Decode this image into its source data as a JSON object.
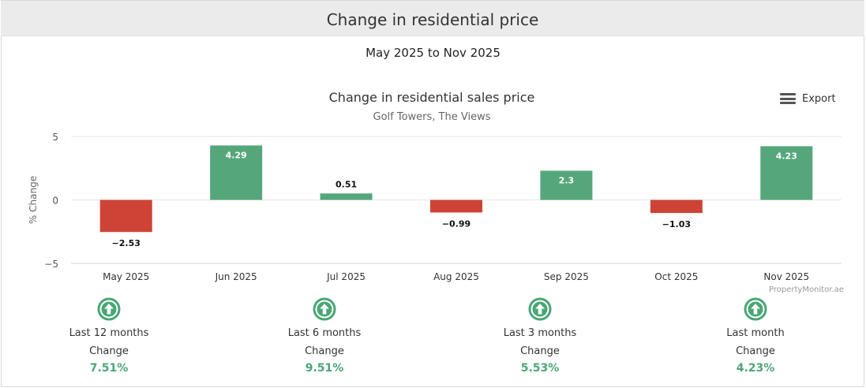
{
  "header": {
    "title": "Change in residential price"
  },
  "date_range": "May 2025 to Nov 2025",
  "export": {
    "label": "Export"
  },
  "credit": "PropertyMonitor.ae",
  "colors": {
    "positive": "#55a77b",
    "negative": "#cf4337",
    "stat_value": "#4aa675"
  },
  "chart_data": {
    "type": "bar",
    "title": "Change in residential sales price",
    "subtitle": "Golf Towers, The Views",
    "categories": [
      "May 2025",
      "Jun 2025",
      "Jul 2025",
      "Aug 2025",
      "Sep 2025",
      "Oct 2025",
      "Nov 2025"
    ],
    "values": [
      -2.53,
      4.29,
      0.51,
      -0.99,
      2.3,
      -1.03,
      4.23
    ],
    "value_labels": [
      "−2.53",
      "4.29",
      "0.51",
      "−0.99",
      "2.3",
      "−1.03",
      "4.23"
    ],
    "ylabel": "% Change",
    "xlabel": "",
    "ylim": [
      -5,
      5
    ],
    "yticks": [
      5,
      0,
      -5
    ],
    "ytick_labels": [
      "5",
      "0",
      "−5"
    ],
    "grid": true
  },
  "stats": [
    {
      "period": "Last 12 months",
      "label": "Change",
      "value": "7.51%",
      "icon": "arrow-up-circle-icon"
    },
    {
      "period": "Last 6 months",
      "label": "Change",
      "value": "9.51%",
      "icon": "arrow-up-circle-icon"
    },
    {
      "period": "Last 3 months",
      "label": "Change",
      "value": "5.53%",
      "icon": "arrow-up-circle-icon"
    },
    {
      "period": "Last month",
      "label": "Change",
      "value": "4.23%",
      "icon": "arrow-up-circle-icon"
    }
  ]
}
